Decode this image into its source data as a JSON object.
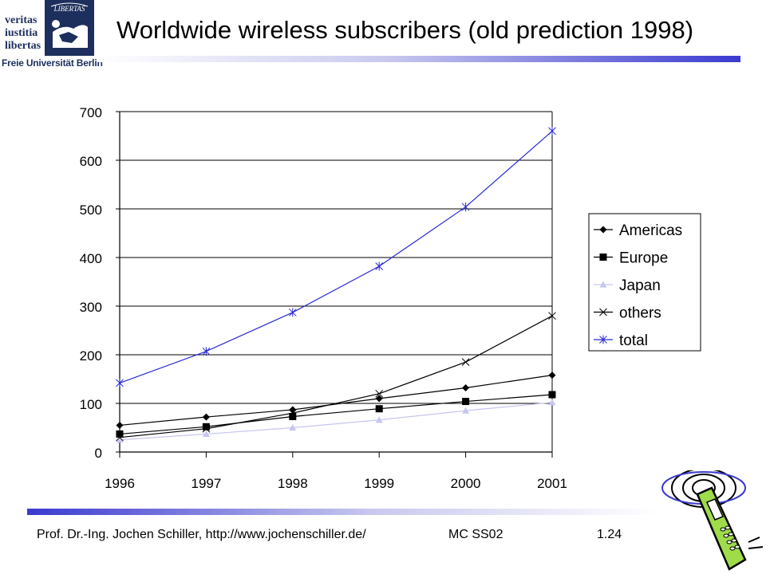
{
  "header": {
    "title": "Worldwide wireless subscribers (old prediction 1998)",
    "logo_lines": [
      "veritas",
      "iustitia",
      "libertas"
    ],
    "logo_seal_text": "LIBERTAS",
    "logo_university": "Freie Universität Berlin"
  },
  "footer": {
    "author": "Prof. Dr.-Ing. Jochen Schiller, http://www.jochenschiller.de/",
    "course": "MC SS02",
    "page": "1.24"
  },
  "colors": {
    "accent": "#3a3ad0",
    "americas": "#000000",
    "europe": "#000000",
    "japan": "#c6c6f0",
    "others": "#000000",
    "total": "#2a2ad2"
  },
  "chart_data": {
    "type": "line",
    "title": "",
    "xlabel": "",
    "ylabel": "",
    "x": [
      "1996",
      "1997",
      "1998",
      "1999",
      "2000",
      "2001"
    ],
    "ylim": [
      0,
      700
    ],
    "yticks": [
      "0",
      "100",
      "200",
      "300",
      "400",
      "500",
      "600",
      "700"
    ],
    "grid": true,
    "legend_position": "right",
    "series": [
      {
        "name": "Americas",
        "marker": "diamond",
        "values": [
          55,
          72,
          87,
          110,
          132,
          158
        ]
      },
      {
        "name": "Europe",
        "marker": "square",
        "values": [
          37,
          52,
          73,
          89,
          104,
          118
        ]
      },
      {
        "name": "Japan",
        "marker": "triangle",
        "values": [
          25,
          37,
          50,
          66,
          85,
          102
        ]
      },
      {
        "name": "others",
        "marker": "x",
        "values": [
          30,
          48,
          80,
          120,
          185,
          280
        ]
      },
      {
        "name": "total",
        "marker": "star",
        "values": [
          142,
          207,
          287,
          382,
          504,
          660
        ]
      }
    ]
  }
}
